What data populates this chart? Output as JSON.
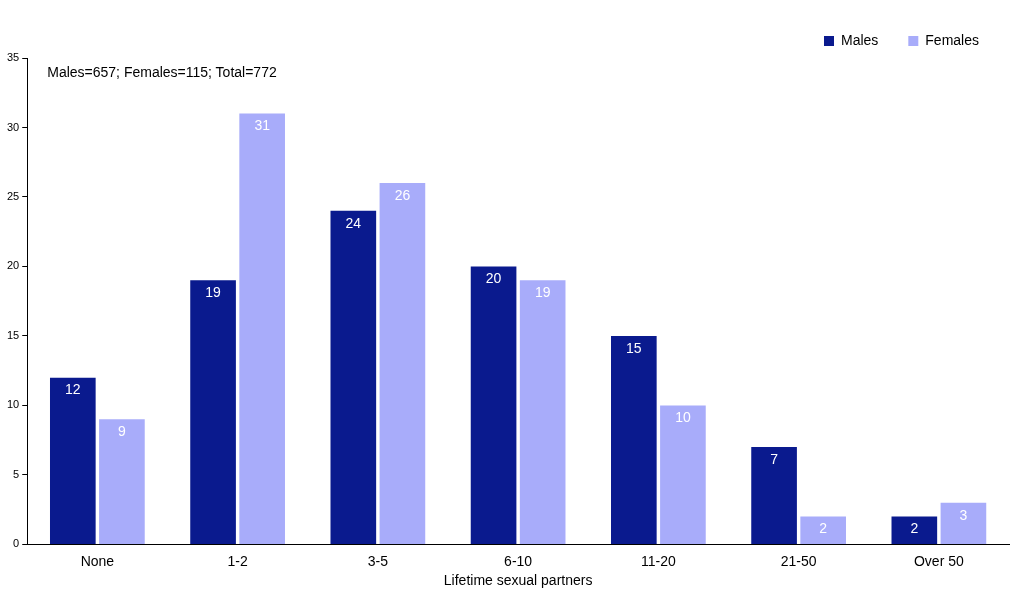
{
  "chart_data": {
    "type": "bar",
    "xlabel": "Lifetime sexual partners",
    "categories": [
      "None",
      "1-2",
      "3-5",
      "6-10",
      "11-20",
      "21-50",
      "Over 50"
    ],
    "series": [
      {
        "name": "Males",
        "color": "#0a1a8e",
        "values": [
          12,
          19,
          24,
          20,
          15,
          7,
          2
        ]
      },
      {
        "name": "Females",
        "color": "#a8acfa",
        "values": [
          9,
          31,
          26,
          19,
          10,
          2,
          3
        ]
      }
    ],
    "ylim": [
      0,
      35
    ],
    "yticks": [
      0,
      5,
      10,
      15,
      20,
      25,
      30,
      35
    ],
    "grid": false,
    "legend": "top right",
    "data_labels": true,
    "annotations": [
      "Males=657; Females=115; Total=772"
    ]
  }
}
